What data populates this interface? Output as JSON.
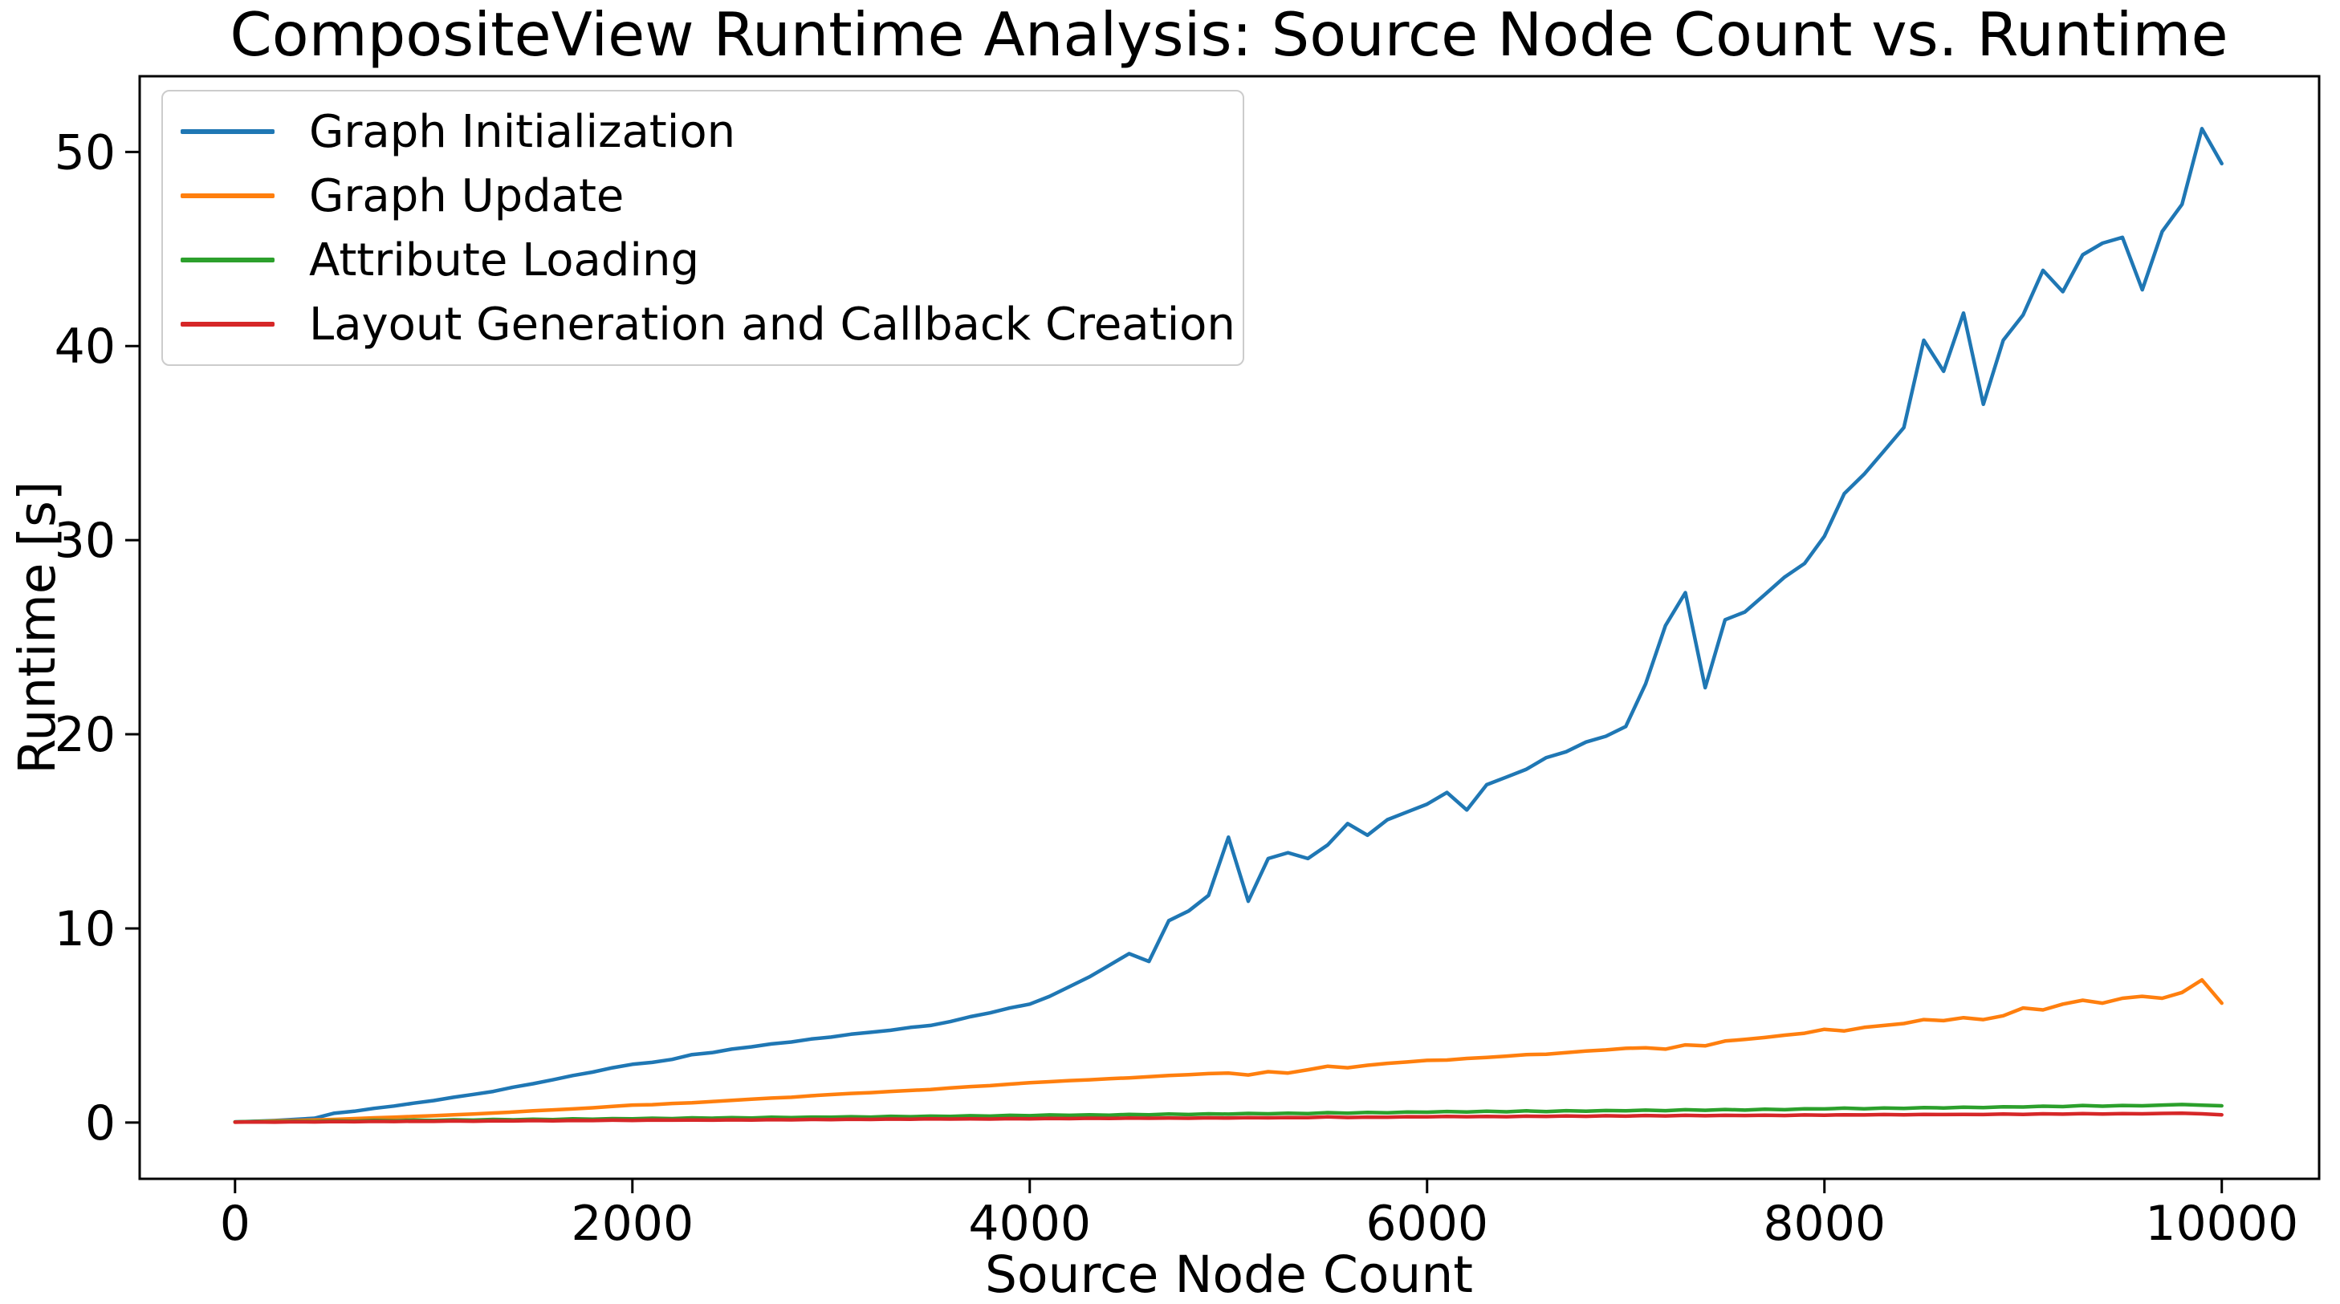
{
  "chart_data": {
    "type": "line",
    "title": "CompositeView Runtime Analysis: Source Node Count vs. Runtime",
    "xlabel": "Source Node Count",
    "ylabel": "Runtime [s]",
    "xlim": [
      -480,
      10490
    ],
    "ylim": [
      -2.9,
      53.9
    ],
    "xticks": [
      0,
      2000,
      4000,
      6000,
      8000,
      10000
    ],
    "yticks": [
      0,
      10,
      20,
      30,
      40,
      50
    ],
    "grid": false,
    "legend_position": "upper left",
    "x": {
      "start": 0,
      "step": 100,
      "count": 101
    },
    "series": [
      {
        "name": "Graph Initialization",
        "color": "#1f77b4",
        "values": [
          0.03,
          0.06,
          0.1,
          0.16,
          0.22,
          0.48,
          0.58,
          0.73,
          0.85,
          1.0,
          1.13,
          1.3,
          1.45,
          1.6,
          1.82,
          2.0,
          2.2,
          2.42,
          2.6,
          2.82,
          3.0,
          3.1,
          3.25,
          3.5,
          3.6,
          3.78,
          3.9,
          4.05,
          4.15,
          4.3,
          4.4,
          4.55,
          4.65,
          4.75,
          4.9,
          5.0,
          5.2,
          5.45,
          5.65,
          5.9,
          6.1,
          6.5,
          7.0,
          7.5,
          8.1,
          8.7,
          8.3,
          10.4,
          10.9,
          11.7,
          14.7,
          11.4,
          13.6,
          13.9,
          13.6,
          14.3,
          15.4,
          14.8,
          15.6,
          16.0,
          16.4,
          17.0,
          16.1,
          17.4,
          17.8,
          18.2,
          18.8,
          19.1,
          19.6,
          19.9,
          20.4,
          22.6,
          25.6,
          27.3,
          22.4,
          25.9,
          26.3,
          27.2,
          28.1,
          28.8,
          30.2,
          32.4,
          33.4,
          34.6,
          35.8,
          40.3,
          38.7,
          41.7,
          37.0,
          40.3,
          41.6,
          43.9,
          42.8,
          44.7,
          45.3,
          45.6,
          42.9,
          45.9,
          47.3,
          51.2,
          49.4
        ]
      },
      {
        "name": "Graph Update",
        "color": "#ff7f0e",
        "values": [
          0.02,
          0.05,
          0.08,
          0.1,
          0.13,
          0.16,
          0.2,
          0.24,
          0.27,
          0.31,
          0.35,
          0.4,
          0.44,
          0.49,
          0.54,
          0.6,
          0.65,
          0.7,
          0.76,
          0.83,
          0.9,
          0.92,
          0.98,
          1.02,
          1.08,
          1.14,
          1.2,
          1.26,
          1.3,
          1.38,
          1.44,
          1.5,
          1.54,
          1.6,
          1.65,
          1.7,
          1.78,
          1.85,
          1.9,
          1.98,
          2.05,
          2.1,
          2.16,
          2.2,
          2.26,
          2.3,
          2.36,
          2.42,
          2.46,
          2.52,
          2.55,
          2.45,
          2.62,
          2.55,
          2.72,
          2.9,
          2.82,
          2.95,
          3.05,
          3.12,
          3.2,
          3.22,
          3.3,
          3.35,
          3.42,
          3.5,
          3.52,
          3.6,
          3.68,
          3.74,
          3.82,
          3.85,
          3.78,
          4.0,
          3.95,
          4.2,
          4.28,
          4.38,
          4.5,
          4.6,
          4.8,
          4.72,
          4.9,
          5.0,
          5.1,
          5.3,
          5.25,
          5.4,
          5.3,
          5.5,
          5.9,
          5.8,
          6.1,
          6.3,
          6.15,
          6.4,
          6.5,
          6.4,
          6.7,
          7.35,
          6.15
        ]
      },
      {
        "name": "Attribute Loading",
        "color": "#2ca02c",
        "values": [
          0.03,
          0.05,
          0.04,
          0.07,
          0.05,
          0.09,
          0.07,
          0.11,
          0.09,
          0.12,
          0.11,
          0.14,
          0.12,
          0.16,
          0.14,
          0.17,
          0.15,
          0.19,
          0.17,
          0.2,
          0.19,
          0.22,
          0.2,
          0.24,
          0.22,
          0.25,
          0.23,
          0.27,
          0.25,
          0.28,
          0.27,
          0.3,
          0.28,
          0.32,
          0.3,
          0.33,
          0.31,
          0.35,
          0.33,
          0.37,
          0.35,
          0.39,
          0.37,
          0.4,
          0.38,
          0.42,
          0.4,
          0.44,
          0.41,
          0.45,
          0.43,
          0.47,
          0.45,
          0.48,
          0.46,
          0.51,
          0.48,
          0.52,
          0.5,
          0.54,
          0.53,
          0.57,
          0.54,
          0.58,
          0.55,
          0.6,
          0.56,
          0.61,
          0.58,
          0.62,
          0.6,
          0.64,
          0.61,
          0.66,
          0.63,
          0.67,
          0.64,
          0.69,
          0.66,
          0.71,
          0.7,
          0.74,
          0.71,
          0.75,
          0.73,
          0.77,
          0.75,
          0.79,
          0.77,
          0.81,
          0.8,
          0.84,
          0.82,
          0.88,
          0.84,
          0.88,
          0.86,
          0.9,
          0.93,
          0.89,
          0.86
        ]
      },
      {
        "name": "Layout Generation and Callback Creation",
        "color": "#d62728",
        "values": [
          0.02,
          0.03,
          0.02,
          0.04,
          0.03,
          0.05,
          0.04,
          0.06,
          0.05,
          0.07,
          0.06,
          0.08,
          0.07,
          0.09,
          0.08,
          0.1,
          0.09,
          0.11,
          0.1,
          0.12,
          0.11,
          0.13,
          0.12,
          0.13,
          0.12,
          0.14,
          0.13,
          0.15,
          0.14,
          0.16,
          0.15,
          0.17,
          0.16,
          0.18,
          0.17,
          0.19,
          0.18,
          0.19,
          0.18,
          0.2,
          0.19,
          0.21,
          0.2,
          0.22,
          0.21,
          0.23,
          0.22,
          0.23,
          0.22,
          0.24,
          0.23,
          0.25,
          0.24,
          0.26,
          0.25,
          0.29,
          0.26,
          0.28,
          0.27,
          0.3,
          0.29,
          0.31,
          0.3,
          0.31,
          0.3,
          0.33,
          0.31,
          0.34,
          0.32,
          0.35,
          0.33,
          0.36,
          0.34,
          0.37,
          0.35,
          0.37,
          0.36,
          0.38,
          0.36,
          0.39,
          0.38,
          0.4,
          0.39,
          0.41,
          0.4,
          0.42,
          0.41,
          0.42,
          0.41,
          0.44,
          0.42,
          0.45,
          0.43,
          0.46,
          0.44,
          0.46,
          0.45,
          0.47,
          0.48,
          0.45,
          0.4
        ]
      }
    ],
    "axis_color": "#000000",
    "legend_border_color": "#cccccc"
  }
}
